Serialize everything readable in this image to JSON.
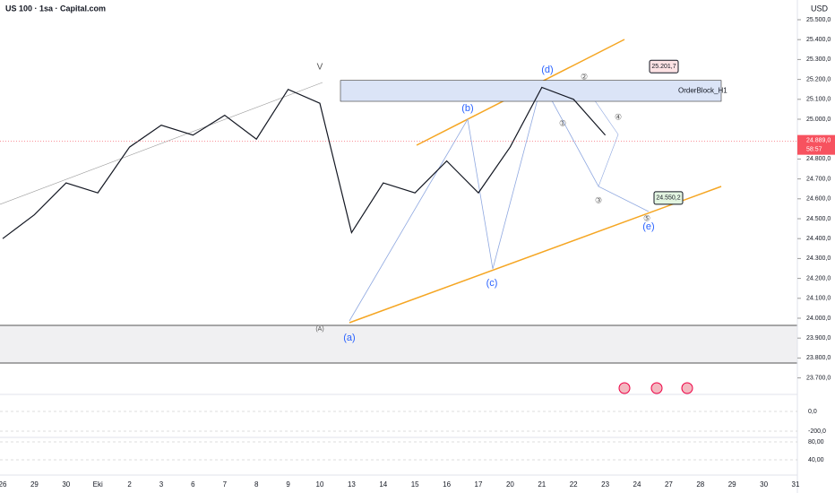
{
  "header": {
    "title": "US 100 · 1sa · Capital.com",
    "currency": "USD"
  },
  "chart_data": {
    "type": "line",
    "color": "#131722",
    "categories": [
      "26",
      "29",
      "30",
      "Eki",
      "2",
      "3",
      "6",
      "7",
      "8",
      "9",
      "10",
      "13",
      "14",
      "15",
      "16",
      "17",
      "20",
      "21",
      "22",
      "23",
      "24",
      "27",
      "28",
      "29",
      "30",
      "31"
    ],
    "values": [
      24400,
      24520,
      24680,
      24630,
      24860,
      24970,
      24920,
      25020,
      24900,
      25150,
      25080,
      24430,
      24680,
      24630,
      24790,
      24630,
      24860,
      25160,
      25100,
      24920,
      null,
      null,
      null,
      null,
      null,
      null
    ],
    "ylim": [
      23650,
      25550
    ],
    "yticks": [
      {
        "value": 25500,
        "label": "25.500,0"
      },
      {
        "value": 25400,
        "label": "25.400,0"
      },
      {
        "value": 25300,
        "label": "25.300,0"
      },
      {
        "value": 25200,
        "label": "25.200,0"
      },
      {
        "value": 25100,
        "label": "25.100,0"
      },
      {
        "value": 25000,
        "label": "25.000,0"
      },
      {
        "value": 24900,
        "label": "24.900,0"
      },
      {
        "value": 24800,
        "label": "24.800,0"
      },
      {
        "value": 24700,
        "label": "24.700,0"
      },
      {
        "value": 24600,
        "label": "24.600,0"
      },
      {
        "value": 24500,
        "label": "24.500,0"
      },
      {
        "value": 24400,
        "label": "24.400,0"
      },
      {
        "value": 24300,
        "label": "24.300,0"
      },
      {
        "value": 24200,
        "label": "24.200,0"
      },
      {
        "value": 24100,
        "label": "24.100,0"
      },
      {
        "value": 24000,
        "label": "24.000,0"
      },
      {
        "value": 23900,
        "label": "23.900,0"
      },
      {
        "value": 23800,
        "label": "23.800,0"
      },
      {
        "value": 23700,
        "label": "23.700,0"
      }
    ],
    "price_tags": [
      {
        "value": 25201.7,
        "label": "25.201,7"
      },
      {
        "value": 24550.2,
        "label": "24.550,2"
      }
    ],
    "last_price": {
      "value": 24889,
      "label": "24.889,0",
      "countdown": "58:57"
    },
    "order_block": "OrderBlock_H1",
    "wave_labels": [
      "V",
      "(d)",
      "(b)",
      "(c)",
      "(a)",
      "(e)",
      "(A)",
      "①",
      "②",
      "③",
      "④",
      "⑤"
    ]
  },
  "macd": {
    "ylim": [
      -300,
      100
    ],
    "yticks": [
      {
        "value": 0,
        "label": "0,0"
      },
      {
        "value": -200,
        "label": "-200,0"
      }
    ]
  },
  "rsi": {
    "ylim": [
      20,
      90
    ],
    "yticks": [
      {
        "value": 80,
        "label": "80,00"
      },
      {
        "value": 40,
        "label": "40,00"
      }
    ]
  }
}
